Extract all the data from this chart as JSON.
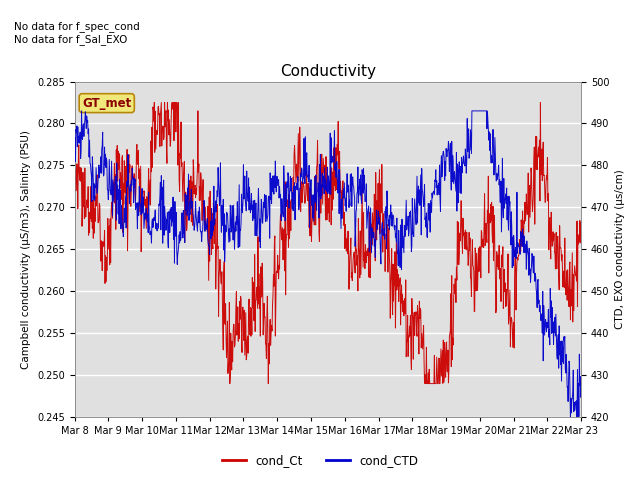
{
  "title": "Conductivity",
  "ylabel_left": "Campbell conductivity (μS/m3), Salinity (PSU)",
  "ylabel_right": "CTD, EXO conductivity (μs/cm)",
  "ylim_left": [
    0.245,
    0.285
  ],
  "ylim_right": [
    420,
    500
  ],
  "yticks_left": [
    0.245,
    0.25,
    0.255,
    0.26,
    0.265,
    0.27,
    0.275,
    0.28,
    0.285
  ],
  "yticks_right": [
    420,
    430,
    440,
    450,
    460,
    470,
    480,
    490,
    500
  ],
  "xtick_labels": [
    "Mar 8",
    "Mar 9",
    "Mar 10",
    "Mar 11",
    "Mar 12",
    "Mar 13",
    "Mar 14",
    "Mar 15",
    "Mar 16",
    "Mar 17",
    "Mar 18",
    "Mar 19",
    "Mar 20",
    "Mar 21",
    "Mar 22",
    "Mar 23"
  ],
  "annotation_top": "No data for f_spec_cond\nNo data for f_Sal_EXO",
  "gt_met_label": "GT_met",
  "legend_labels": [
    "cond_Ct",
    "cond_CTD"
  ],
  "line_colors": [
    "#cc0000",
    "#0000cc"
  ],
  "background_color": "#e0e0e0",
  "grid_color": "white",
  "title_fontsize": 11,
  "label_fontsize": 7.5,
  "tick_fontsize": 7
}
